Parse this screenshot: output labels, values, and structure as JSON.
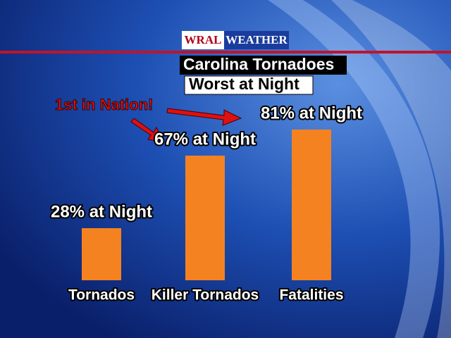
{
  "chart_data": {
    "type": "bar",
    "logo": [
      "WRAL",
      "WEATHER"
    ],
    "title": "Carolina Tornadoes",
    "subtitle": "Worst at Night",
    "annotation": "1st in Nation!",
    "categories": [
      "Tornados",
      "Killer Tornados",
      "Fatalities"
    ],
    "values": [
      28,
      67,
      81
    ],
    "value_labels": [
      "28% at Night",
      "67% at Night",
      "81% at Night"
    ],
    "color": "#f58220"
  }
}
